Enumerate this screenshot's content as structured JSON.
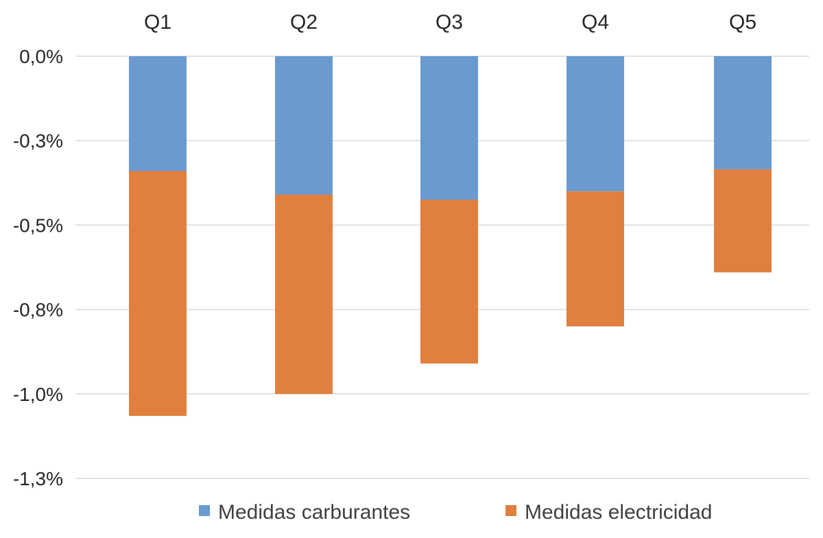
{
  "chart_data": {
    "type": "bar",
    "stacked": true,
    "categories": [
      "Q1",
      "Q2",
      "Q3",
      "Q4",
      "Q5"
    ],
    "category_axis_position": "top",
    "series": [
      {
        "name": "Medidas carburantes",
        "color": "#6a9ad0",
        "values": [
          -0.34,
          -0.41,
          -0.425,
          -0.4,
          -0.335
        ]
      },
      {
        "name": "Medidas electricidad",
        "color": "#e07f3e",
        "values": [
          -0.725,
          -0.59,
          -0.485,
          -0.4,
          -0.305
        ]
      }
    ],
    "y_ticks": [
      {
        "value": 0,
        "label": "0,0%"
      },
      {
        "value": -0.25,
        "label": "-0,3%"
      },
      {
        "value": -0.5,
        "label": "-0,5%"
      },
      {
        "value": -0.75,
        "label": "-0,8%"
      },
      {
        "value": -1.0,
        "label": "-1,0%"
      },
      {
        "value": -1.25,
        "label": "-1,3%"
      }
    ],
    "ylim": [
      -1.25,
      0
    ],
    "grid": true,
    "legend_position": "bottom"
  }
}
